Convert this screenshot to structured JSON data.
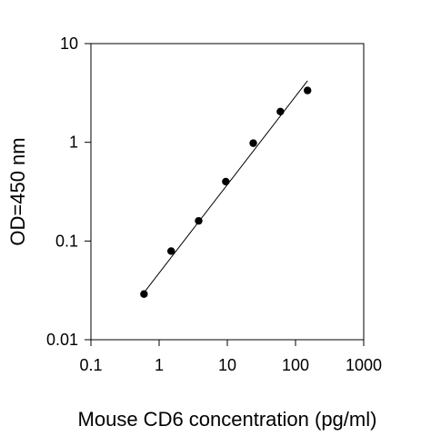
{
  "chart_data": {
    "type": "scatter",
    "title": "",
    "xlabel": "Mouse CD6 concentration (pg/ml)",
    "ylabel": "OD=450 nm",
    "x_scale": "log",
    "y_scale": "log",
    "xlim": [
      0.1,
      1000
    ],
    "ylim": [
      0.01,
      10
    ],
    "x_ticks": [
      "0.1",
      "1",
      "10",
      "100",
      "1000"
    ],
    "y_ticks": [
      "0.01",
      "0.1",
      "1",
      "10"
    ],
    "grid": false,
    "legend": "none",
    "series": [
      {
        "points": [
          {
            "x": 0.6,
            "y": 0.029
          },
          {
            "x": 1.5,
            "y": 0.079
          },
          {
            "x": 3.8,
            "y": 0.16
          },
          {
            "x": 9.5,
            "y": 0.4
          },
          {
            "x": 24,
            "y": 0.98
          },
          {
            "x": 60,
            "y": 2.05
          },
          {
            "x": 150,
            "y": 3.35
          }
        ]
      }
    ],
    "fit_line": {
      "type": "linear-log-log",
      "from": {
        "x": 0.6,
        "y": 0.03
      },
      "to": {
        "x": 150,
        "y": 4.2
      }
    },
    "colors": {
      "axis": "#000000",
      "points": "#000000",
      "line": "#000000"
    }
  }
}
